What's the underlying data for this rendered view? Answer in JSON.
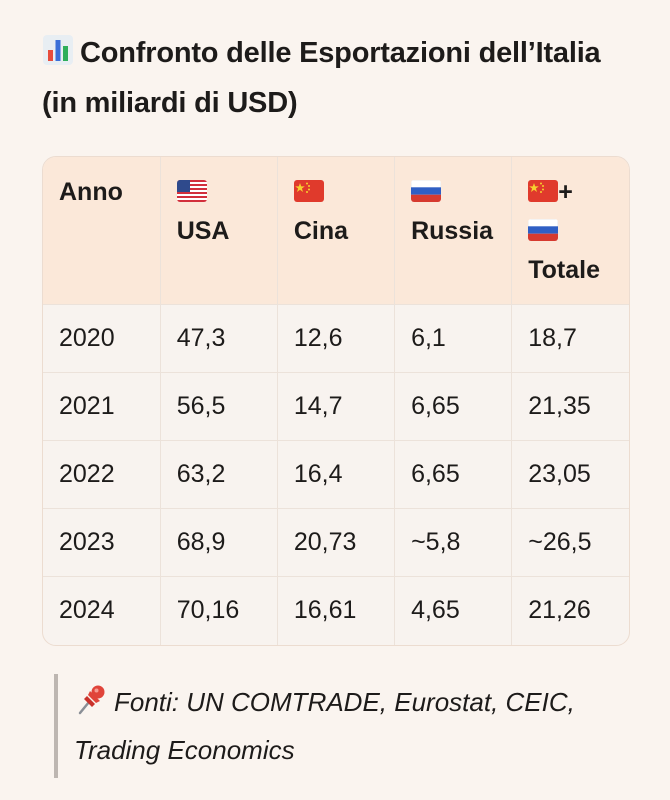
{
  "title": "Confronto delle Esportazioni dell’Italia (in miliardi di USD)",
  "title_icon": "bar-chart-icon",
  "table": {
    "headers": [
      "Anno",
      "USA",
      "Cina",
      "Russia",
      "Totale"
    ],
    "header_flags": [
      "",
      "us-flag-icon",
      "china-flag-icon",
      "russia-flag-icon",
      "china-flag-icon+russia-flag-icon"
    ],
    "rows": [
      [
        "2020",
        "47,3",
        "12,6",
        "6,1",
        "18,7"
      ],
      [
        "2021",
        "56,5",
        "14,7",
        "6,65",
        "21,35"
      ],
      [
        "2022",
        "63,2",
        "16,4",
        "6,65",
        "23,05"
      ],
      [
        "2023",
        "68,9",
        "20,73",
        "~5,8",
        "~26,5"
      ],
      [
        "2024",
        "70,16",
        "16,61",
        "4,65",
        "21,26"
      ]
    ]
  },
  "note": {
    "icon": "pushpin-icon",
    "text": "Fonti: UN COMTRADE, Eurostat, CEIC, Trading Economics"
  },
  "colors": {
    "background": "#faf4ef",
    "header_background": "#fbe8d9",
    "text": "#1d1b1a"
  }
}
